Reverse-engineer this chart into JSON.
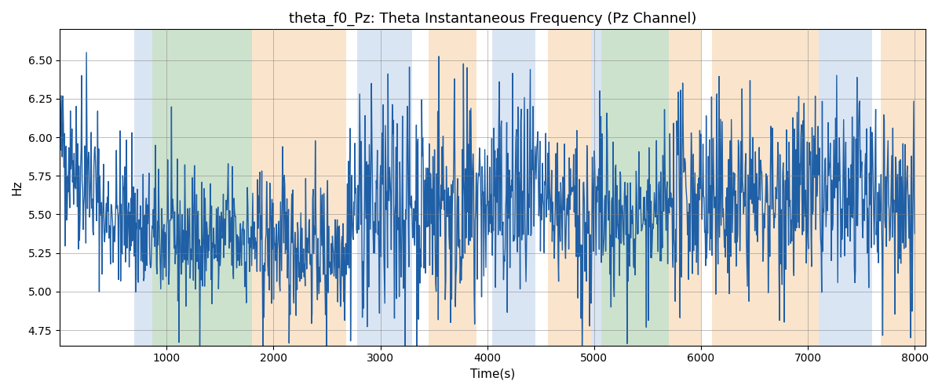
{
  "title": "theta_f0_Pz: Theta Instantaneous Frequency (Pz Channel)",
  "xlabel": "Time(s)",
  "ylabel": "Hz",
  "xlim": [
    0,
    8100
  ],
  "ylim": [
    4.65,
    6.7
  ],
  "yticks": [
    4.75,
    5.0,
    5.25,
    5.5,
    5.75,
    6.0,
    6.25,
    6.5
  ],
  "xticks": [
    1000,
    2000,
    3000,
    4000,
    5000,
    6000,
    7000,
    8000
  ],
  "line_color": "#1f5fa6",
  "line_width": 1.0,
  "background_color": "#ffffff",
  "colored_bands": [
    {
      "xmin": 700,
      "xmax": 870,
      "color": "#aec6e8",
      "alpha": 0.45
    },
    {
      "xmin": 870,
      "xmax": 1800,
      "color": "#90c090",
      "alpha": 0.45
    },
    {
      "xmin": 1800,
      "xmax": 2680,
      "color": "#f5c78e",
      "alpha": 0.45
    },
    {
      "xmin": 2680,
      "xmax": 2780,
      "color": "#ffffff",
      "alpha": 1.0
    },
    {
      "xmin": 2780,
      "xmax": 3300,
      "color": "#aec6e8",
      "alpha": 0.45
    },
    {
      "xmin": 3300,
      "xmax": 3450,
      "color": "#ffffff",
      "alpha": 1.0
    },
    {
      "xmin": 3450,
      "xmax": 3900,
      "color": "#f5c78e",
      "alpha": 0.45
    },
    {
      "xmin": 3900,
      "xmax": 4050,
      "color": "#ffffff",
      "alpha": 1.0
    },
    {
      "xmin": 4050,
      "xmax": 4450,
      "color": "#aec6e8",
      "alpha": 0.45
    },
    {
      "xmin": 4450,
      "xmax": 4570,
      "color": "#ffffff",
      "alpha": 1.0
    },
    {
      "xmin": 4570,
      "xmax": 4970,
      "color": "#f5c78e",
      "alpha": 0.45
    },
    {
      "xmin": 4970,
      "xmax": 5070,
      "color": "#aec6e8",
      "alpha": 0.45
    },
    {
      "xmin": 5070,
      "xmax": 5700,
      "color": "#90c090",
      "alpha": 0.45
    },
    {
      "xmin": 5700,
      "xmax": 6000,
      "color": "#f5c78e",
      "alpha": 0.45
    },
    {
      "xmin": 6000,
      "xmax": 6100,
      "color": "#ffffff",
      "alpha": 1.0
    },
    {
      "xmin": 6100,
      "xmax": 7100,
      "color": "#f5c78e",
      "alpha": 0.45
    },
    {
      "xmin": 7100,
      "xmax": 7600,
      "color": "#aec6e8",
      "alpha": 0.45
    },
    {
      "xmin": 7600,
      "xmax": 7680,
      "color": "#ffffff",
      "alpha": 1.0
    },
    {
      "xmin": 7680,
      "xmax": 8100,
      "color": "#f5c78e",
      "alpha": 0.45
    }
  ],
  "n_points": 1600,
  "seed": 42
}
